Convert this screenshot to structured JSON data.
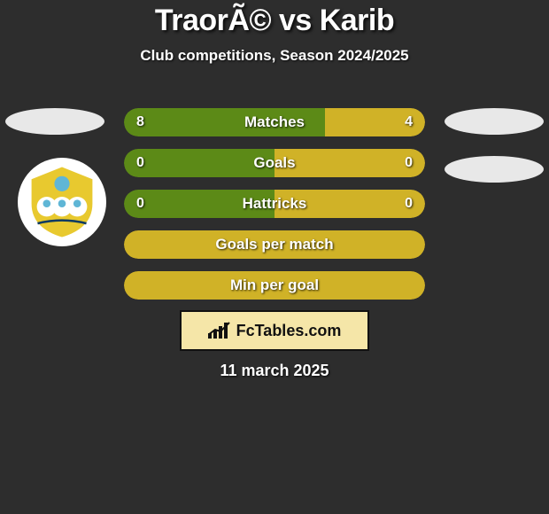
{
  "background_color": "#2d2d2d",
  "title": "TraorÃ© vs Karib",
  "title_fontsize": 34,
  "title_color": "#ffffff",
  "subtitle": "Club competitions, Season 2024/2025",
  "subtitle_fontsize": 17,
  "player_ellipse_color": "#e8e8e8",
  "club_badge": {
    "bg": "#ffffff",
    "crest_main": "#e8c92f",
    "crest_accent": "#5fb6d6",
    "crest_text": "#0b3a63"
  },
  "bars": {
    "track_height": 32,
    "border_radius": 16,
    "label_color": "#ffffff",
    "label_fontsize": 17,
    "value_fontsize": 16,
    "rows": [
      {
        "key": "matches",
        "label": "Matches",
        "left_value": "8",
        "right_value": "4",
        "left_pct": 66.7,
        "right_pct": 33.3,
        "left_color": "#5c8a17",
        "right_color": "#d0b227"
      },
      {
        "key": "goals",
        "label": "Goals",
        "left_value": "0",
        "right_value": "0",
        "left_pct": 50,
        "right_pct": 50,
        "left_color": "#5c8a17",
        "right_color": "#d0b227"
      },
      {
        "key": "hattricks",
        "label": "Hattricks",
        "left_value": "0",
        "right_value": "0",
        "left_pct": 50,
        "right_pct": 50,
        "left_color": "#5c8a17",
        "right_color": "#d0b227"
      },
      {
        "key": "gpm",
        "label": "Goals per match",
        "left_value": "",
        "right_value": "",
        "full": true,
        "full_color": "#d0b227"
      },
      {
        "key": "mpg",
        "label": "Min per goal",
        "left_value": "",
        "right_value": "",
        "full": true,
        "full_color": "#d0b227"
      }
    ]
  },
  "brand": {
    "text": "FcTables.com",
    "box_bg": "#f5e6a8",
    "box_border": "#111111",
    "text_color": "#111111",
    "icon_color": "#111111"
  },
  "date": "11 march 2025",
  "date_fontsize": 18
}
